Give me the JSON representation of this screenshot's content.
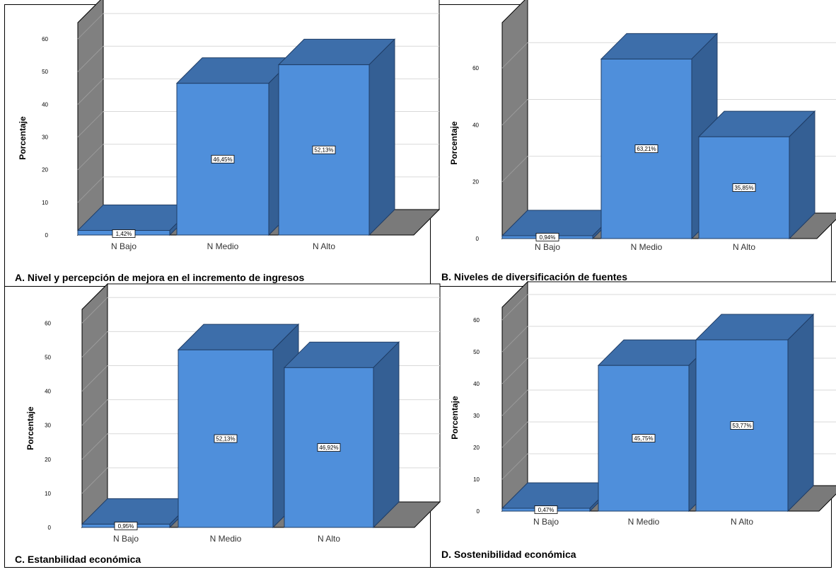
{
  "chart_data": [
    {
      "type": "bar",
      "caption": "A. Nivel y percepción de mejora en el incremento de ingresos",
      "ylabel": "Porcentaje",
      "categories": [
        "N Bajo",
        "N Medio",
        "N Alto"
      ],
      "values": [
        1.42,
        46.45,
        52.13
      ],
      "data_labels": [
        "1,42%",
        "46,45%",
        "52,13%"
      ],
      "yticks": [
        0,
        10,
        20,
        30,
        40,
        50,
        60
      ],
      "ylim": [
        0,
        65
      ],
      "grid": true
    },
    {
      "type": "bar",
      "caption": "B. Niveles de diversificación de fuentes",
      "ylabel": "Porcentaje",
      "categories": [
        "N Bajo",
        "N Medio",
        "N Alto"
      ],
      "values": [
        0.94,
        63.21,
        35.85
      ],
      "data_labels": [
        "0,94%",
        "63,21%",
        "35,85%"
      ],
      "yticks": [
        0,
        20,
        40,
        60
      ],
      "ylim": [
        0,
        76
      ],
      "grid": true
    },
    {
      "type": "bar",
      "caption": "C. Estanbilidad económica",
      "ylabel": "Porcentaje",
      "categories": [
        "N Bajo",
        "N Medio",
        "N Alto"
      ],
      "values": [
        0.95,
        52.13,
        46.92
      ],
      "data_labels": [
        "0,95%",
        "52,13%",
        "46,92%"
      ],
      "yticks": [
        0,
        10,
        20,
        30,
        40,
        50,
        60
      ],
      "ylim": [
        0,
        64
      ],
      "grid": true
    },
    {
      "type": "bar",
      "caption": "D. Sostenibilidad económica",
      "ylabel": "Porcentaje",
      "categories": [
        "N Bajo",
        "N Medio",
        "N Alto"
      ],
      "values": [
        0.47,
        45.75,
        53.77
      ],
      "data_labels": [
        "0,47%",
        "45,75%",
        "53,77%"
      ],
      "yticks": [
        0,
        10,
        20,
        30,
        40,
        50,
        60
      ],
      "ylim": [
        0,
        64
      ],
      "grid": true
    }
  ],
  "colors": {
    "bar_front": "#4f8fdb",
    "bar_side": "#345f94",
    "bar_top": "#3d6eaa",
    "wall": "#808080",
    "floor": "#7a7a7a",
    "grid": "#d9d9d9"
  }
}
